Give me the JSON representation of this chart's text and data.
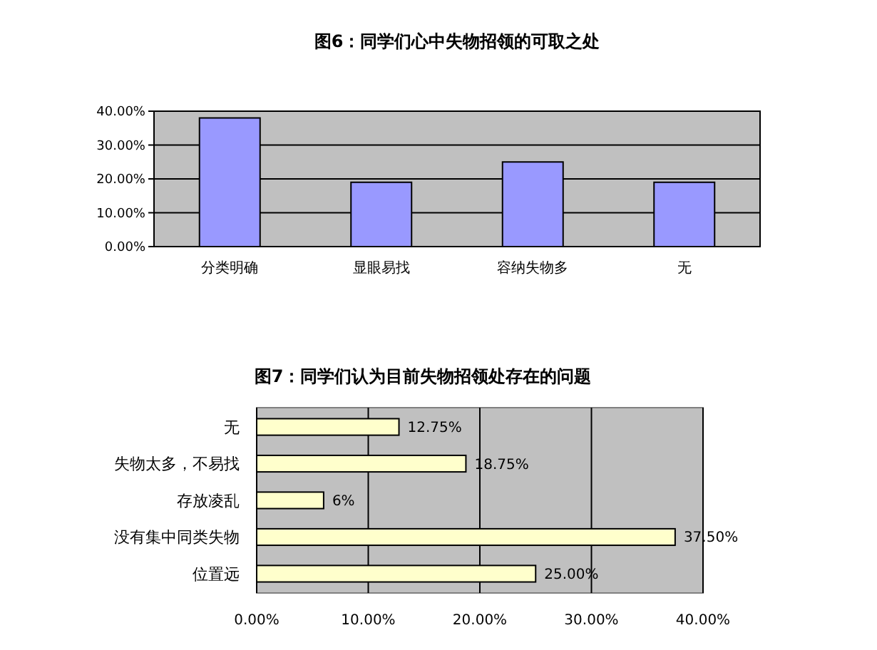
{
  "chart_data": [
    {
      "type": "bar",
      "title": "图6：同学们心中失物招领的可取之处",
      "categories": [
        "分类明确",
        "显眼易找",
        "容纳失物多",
        "无"
      ],
      "values": [
        38,
        19,
        25,
        19
      ],
      "color": "#9999ff",
      "ylim": [
        0,
        40
      ],
      "yticks": [
        {
          "value": 0,
          "label": "0.00%"
        },
        {
          "value": 10,
          "label": "10.00%"
        },
        {
          "value": 20,
          "label": "20.00%"
        },
        {
          "value": 30,
          "label": "30.00%"
        },
        {
          "value": 40,
          "label": "40.00%"
        }
      ],
      "grid": "y"
    },
    {
      "type": "bar",
      "orientation": "horizontal",
      "title": "图7：同学们认为目前失物招领处存在的问题",
      "categories": [
        "无",
        "失物太多，不易找",
        "存放凌乱",
        "没有集中同类失物",
        "位置远"
      ],
      "values": [
        12.75,
        18.75,
        6,
        37.5,
        25
      ],
      "value_labels": [
        "12.75%",
        "18.75%",
        "6%",
        "37.50%",
        "25.00%"
      ],
      "color": "#ffffcc",
      "xlim": [
        0,
        40
      ],
      "xticks": [
        {
          "value": 0,
          "label": "0.00%"
        },
        {
          "value": 10,
          "label": "10.00%"
        },
        {
          "value": 20,
          "label": "20.00%"
        },
        {
          "value": 30,
          "label": "30.00%"
        },
        {
          "value": 40,
          "label": "40.00%"
        }
      ],
      "grid": "x"
    }
  ]
}
